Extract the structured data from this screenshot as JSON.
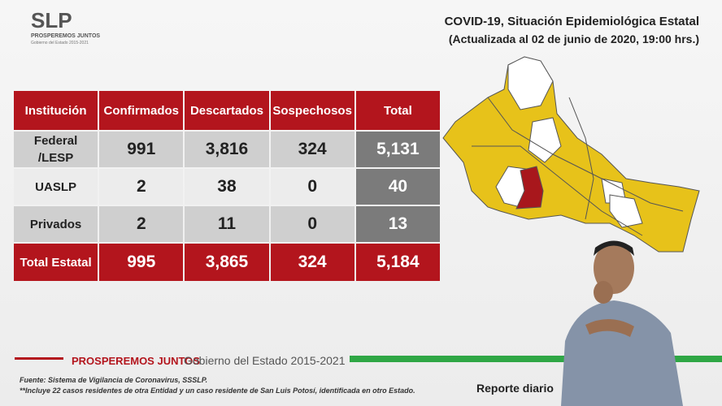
{
  "header": {
    "logo": "SLP",
    "logo_tagline": "PROSPEREMOS JUNTOS",
    "logo_subtagline": "Gobierno del Estado 2015-2021",
    "title": "COVID-19, Situación Epidemiológica Estatal",
    "subtitle": "(Actualizada al 02 de junio de 2020, 19:00 hrs.)"
  },
  "table": {
    "columns": [
      "Institución",
      "Confirmados",
      "Descartados",
      "Sospechosos",
      "Total"
    ],
    "rows": [
      [
        "Federal\n/LESP",
        "991",
        "3,816",
        "324",
        "5,131"
      ],
      [
        "UASLP",
        "2",
        "38",
        "0",
        "40"
      ],
      [
        "Privados",
        "2",
        "11",
        "0",
        "13"
      ]
    ],
    "total": [
      "Total Estatal",
      "995",
      "3,865",
      "324",
      "5,184"
    ]
  },
  "footer": {
    "slogan": "PROSPEREMOS JUNTOS",
    "government": "Gobierno del Estado 2015-2021",
    "source": "Fuente: Sistema de Vigilancia de Coronavirus, SSSLP.",
    "note": "**Incluye 22 casos residentes de otra Entidad y un caso residente de San Luis Potosí, identificada en otro Estado.",
    "report": "Reporte diario"
  }
}
